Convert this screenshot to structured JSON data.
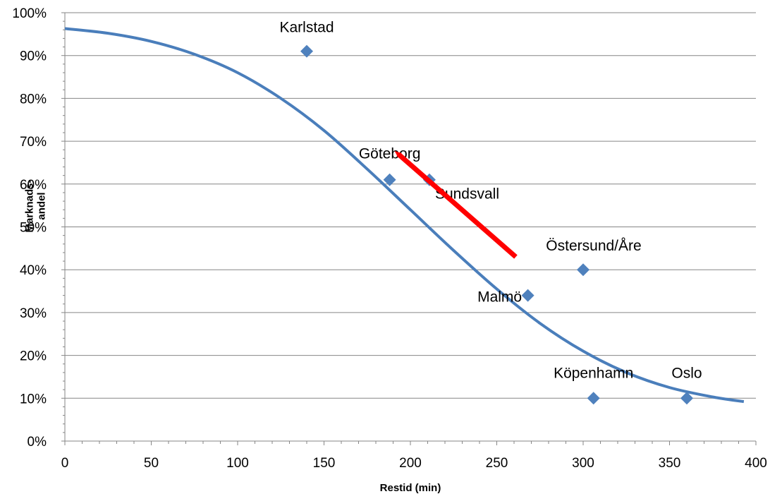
{
  "chart_data": {
    "type": "scatter",
    "title": "",
    "xlabel": "Restid (min)",
    "ylabel": "Marknads-\nandel",
    "xlim": [
      0,
      400
    ],
    "ylim": [
      0,
      100
    ],
    "x_ticks": [
      0,
      50,
      100,
      150,
      200,
      250,
      300,
      350,
      400
    ],
    "y_ticks": [
      0,
      10,
      20,
      30,
      40,
      50,
      60,
      70,
      80,
      90,
      100
    ],
    "y_tick_suffix": "%",
    "grid": "horizontal",
    "legend": "none",
    "points": [
      {
        "label": "Karlstad",
        "x": 140,
        "y": 91
      },
      {
        "label": "Göteborg",
        "x": 188,
        "y": 61
      },
      {
        "label": "Sundsvall",
        "x": 211,
        "y": 61
      },
      {
        "label": "Malmö",
        "x": 268,
        "y": 34
      },
      {
        "label": "Östersund/Åre",
        "x": 300,
        "y": 40
      },
      {
        "label": "Köpenhamn",
        "x": 306,
        "y": 10
      },
      {
        "label": "Oslo",
        "x": 360,
        "y": 10
      }
    ],
    "trendline": {
      "type": "logistic",
      "x": [
        0,
        25,
        50,
        75,
        100,
        125,
        150,
        175,
        200,
        225,
        250,
        275,
        300,
        325,
        350,
        375,
        393
      ],
      "y": [
        96.3,
        95.2,
        93.3,
        90.3,
        86.0,
        80.0,
        72.5,
        63.5,
        54.0,
        44.5,
        35.5,
        27.5,
        21.0,
        16.0,
        12.5,
        10.3,
        9.2
      ]
    },
    "arrow": {
      "from": {
        "x": 261,
        "y": 43
      },
      "to": {
        "x": 193,
        "y": 67
      }
    },
    "colors": {
      "points": "#4F81BD",
      "trendline": "#4A7EBB",
      "arrow": "#FF0000",
      "grid": "#868686",
      "axis": "#868686"
    }
  }
}
